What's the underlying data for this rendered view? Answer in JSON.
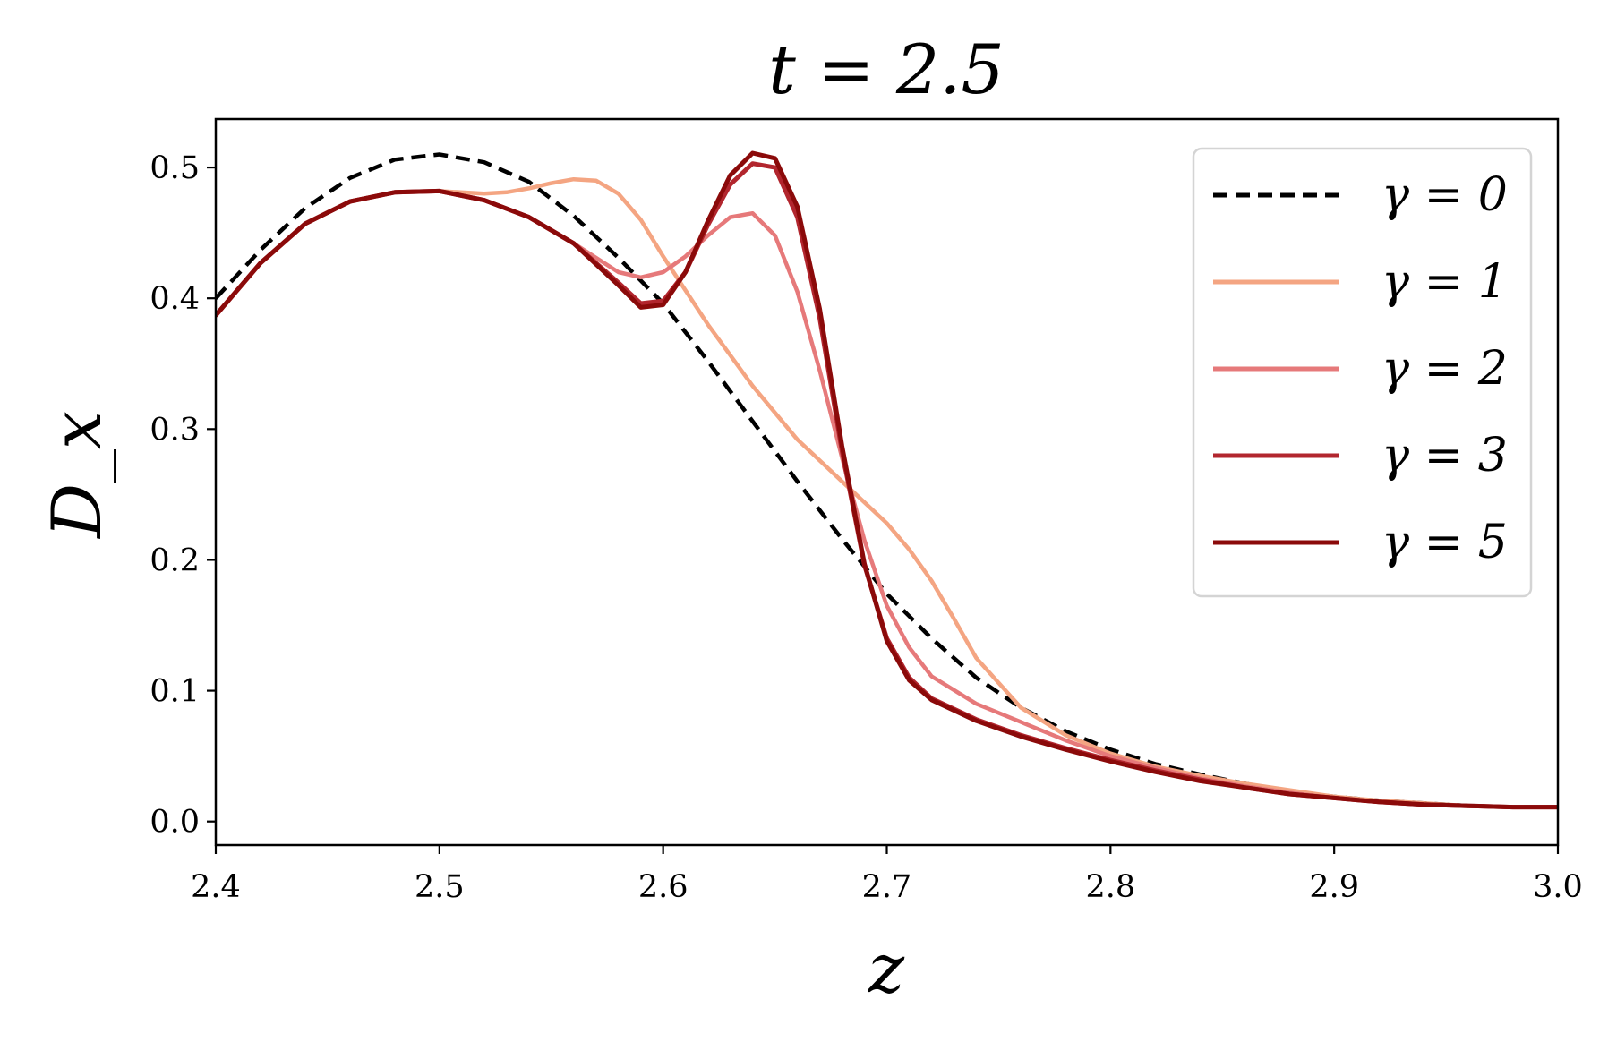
{
  "chart_data": {
    "type": "line",
    "title": "t = 2.5",
    "xlabel": "z",
    "ylabel": "D_x",
    "xlim": [
      2.4,
      3.0
    ],
    "ylim": [
      -0.018,
      0.537
    ],
    "xticks": [
      2.4,
      2.5,
      2.6,
      2.7,
      2.8,
      2.9,
      3.0
    ],
    "xtick_labels": [
      "2.4",
      "2.5",
      "2.6",
      "2.7",
      "2.8",
      "2.9",
      "3.0"
    ],
    "yticks": [
      0.0,
      0.1,
      0.2,
      0.3,
      0.4,
      0.5
    ],
    "ytick_labels": [
      "0.0",
      "0.1",
      "0.2",
      "0.3",
      "0.4",
      "0.5"
    ],
    "grid": false,
    "legend_position": "top-right",
    "series": [
      {
        "name": "γ = 0",
        "color": "#000000",
        "dashed": true,
        "x": [
          2.4,
          2.42,
          2.44,
          2.46,
          2.48,
          2.5,
          2.52,
          2.54,
          2.56,
          2.58,
          2.6,
          2.62,
          2.64,
          2.66,
          2.68,
          2.7,
          2.72,
          2.74,
          2.76,
          2.78,
          2.8,
          2.82,
          2.84,
          2.86,
          2.88,
          2.9,
          2.92,
          2.94,
          2.96,
          2.98,
          3.0
        ],
        "y": [
          0.4,
          0.437,
          0.469,
          0.492,
          0.506,
          0.51,
          0.504,
          0.489,
          0.463,
          0.431,
          0.396,
          0.352,
          0.306,
          0.26,
          0.216,
          0.174,
          0.14,
          0.11,
          0.087,
          0.069,
          0.055,
          0.044,
          0.036,
          0.029,
          0.023,
          0.019,
          0.016,
          0.014,
          0.012,
          0.011,
          0.011
        ]
      },
      {
        "name": "γ = 1",
        "color": "#F4A582",
        "dashed": false,
        "x": [
          2.4,
          2.42,
          2.44,
          2.46,
          2.48,
          2.5,
          2.52,
          2.53,
          2.54,
          2.55,
          2.56,
          2.57,
          2.58,
          2.59,
          2.6,
          2.62,
          2.64,
          2.66,
          2.68,
          2.7,
          2.71,
          2.72,
          2.73,
          2.74,
          2.76,
          2.78,
          2.8,
          2.82,
          2.84,
          2.86,
          2.88,
          2.9,
          2.92,
          2.94,
          2.96,
          2.98,
          3.0
        ],
        "y": [
          0.387,
          0.427,
          0.457,
          0.474,
          0.481,
          0.482,
          0.48,
          0.481,
          0.484,
          0.488,
          0.491,
          0.49,
          0.48,
          0.46,
          0.432,
          0.38,
          0.333,
          0.292,
          0.26,
          0.228,
          0.208,
          0.184,
          0.155,
          0.125,
          0.087,
          0.066,
          0.052,
          0.042,
          0.035,
          0.029,
          0.024,
          0.019,
          0.016,
          0.014,
          0.012,
          0.011,
          0.011
        ]
      },
      {
        "name": "γ = 2",
        "color": "#E6797A",
        "dashed": false,
        "x": [
          2.4,
          2.42,
          2.44,
          2.46,
          2.48,
          2.5,
          2.52,
          2.54,
          2.56,
          2.58,
          2.59,
          2.6,
          2.61,
          2.62,
          2.63,
          2.64,
          2.65,
          2.66,
          2.67,
          2.68,
          2.69,
          2.7,
          2.71,
          2.72,
          2.74,
          2.76,
          2.78,
          2.8,
          2.82,
          2.84,
          2.86,
          2.88,
          2.9,
          2.92,
          2.94,
          2.96,
          2.98,
          3.0
        ],
        "y": [
          0.387,
          0.427,
          0.457,
          0.474,
          0.481,
          0.482,
          0.475,
          0.462,
          0.442,
          0.42,
          0.416,
          0.42,
          0.432,
          0.448,
          0.462,
          0.465,
          0.448,
          0.405,
          0.345,
          0.278,
          0.215,
          0.165,
          0.133,
          0.111,
          0.09,
          0.076,
          0.062,
          0.05,
          0.041,
          0.033,
          0.027,
          0.022,
          0.018,
          0.015,
          0.013,
          0.012,
          0.011,
          0.011
        ]
      },
      {
        "name": "γ = 3",
        "color": "#B2262E",
        "dashed": false,
        "x": [
          2.4,
          2.42,
          2.44,
          2.46,
          2.48,
          2.5,
          2.52,
          2.54,
          2.56,
          2.58,
          2.59,
          2.6,
          2.61,
          2.62,
          2.63,
          2.64,
          2.65,
          2.66,
          2.67,
          2.68,
          2.69,
          2.7,
          2.71,
          2.72,
          2.74,
          2.76,
          2.78,
          2.8,
          2.82,
          2.84,
          2.86,
          2.88,
          2.9,
          2.92,
          2.94,
          2.96,
          2.98,
          3.0
        ],
        "y": [
          0.387,
          0.427,
          0.457,
          0.474,
          0.481,
          0.482,
          0.475,
          0.462,
          0.442,
          0.412,
          0.396,
          0.398,
          0.42,
          0.456,
          0.487,
          0.503,
          0.5,
          0.462,
          0.385,
          0.283,
          0.196,
          0.14,
          0.11,
          0.094,
          0.078,
          0.066,
          0.056,
          0.047,
          0.039,
          0.032,
          0.026,
          0.021,
          0.018,
          0.015,
          0.013,
          0.012,
          0.011,
          0.011
        ]
      },
      {
        "name": "γ = 5",
        "color": "#8B0A0A",
        "dashed": false,
        "x": [
          2.4,
          2.42,
          2.44,
          2.46,
          2.48,
          2.5,
          2.52,
          2.54,
          2.56,
          2.58,
          2.59,
          2.6,
          2.61,
          2.62,
          2.63,
          2.64,
          2.65,
          2.66,
          2.67,
          2.68,
          2.69,
          2.7,
          2.71,
          2.72,
          2.74,
          2.76,
          2.78,
          2.8,
          2.82,
          2.84,
          2.86,
          2.88,
          2.9,
          2.92,
          2.94,
          2.96,
          2.98,
          3.0
        ],
        "y": [
          0.387,
          0.427,
          0.457,
          0.474,
          0.481,
          0.482,
          0.475,
          0.462,
          0.442,
          0.41,
          0.393,
          0.395,
          0.42,
          0.459,
          0.494,
          0.511,
          0.507,
          0.47,
          0.392,
          0.287,
          0.197,
          0.138,
          0.108,
          0.093,
          0.077,
          0.065,
          0.055,
          0.046,
          0.038,
          0.031,
          0.026,
          0.021,
          0.018,
          0.015,
          0.013,
          0.012,
          0.011,
          0.011
        ]
      }
    ]
  }
}
